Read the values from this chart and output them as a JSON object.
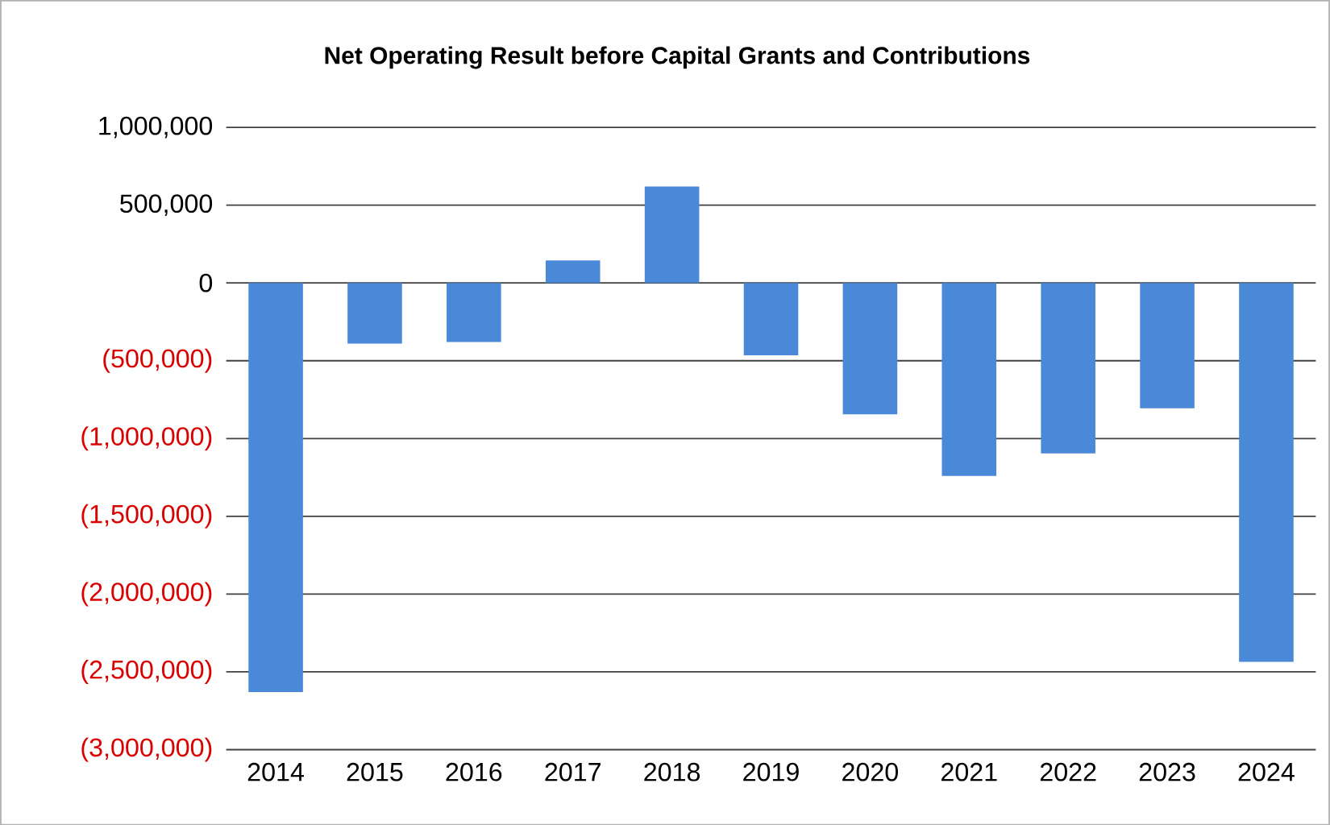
{
  "chart_data": {
    "type": "bar",
    "title": "Net Operating Result before Capital Grants and Contributions",
    "categories": [
      "2014",
      "2015",
      "2016",
      "2017",
      "2018",
      "2019",
      "2020",
      "2021",
      "2022",
      "2023",
      "2024"
    ],
    "values": [
      -2630000,
      -390000,
      -380000,
      145000,
      620000,
      -465000,
      -845000,
      -1240000,
      -1095000,
      -805000,
      -2435000
    ],
    "color": "#4a89d8",
    "ylim": [
      -3000000,
      1000000
    ],
    "yticks": [
      {
        "value": 1000000,
        "label": "1,000,000"
      },
      {
        "value": 500000,
        "label": "500,000"
      },
      0,
      {
        "value": -500000,
        "label": "(500,000)"
      },
      {
        "value": -1000000,
        "label": "(1,000,000)"
      },
      {
        "value": -1500000,
        "label": "(1,500,000)"
      },
      {
        "value": -2000000,
        "label": "(2,000,000)"
      },
      {
        "value": -2500000,
        "label": "(2,500,000)"
      },
      {
        "value": -3000000,
        "label": "(3,000,000)"
      }
    ],
    "grid": "y"
  }
}
